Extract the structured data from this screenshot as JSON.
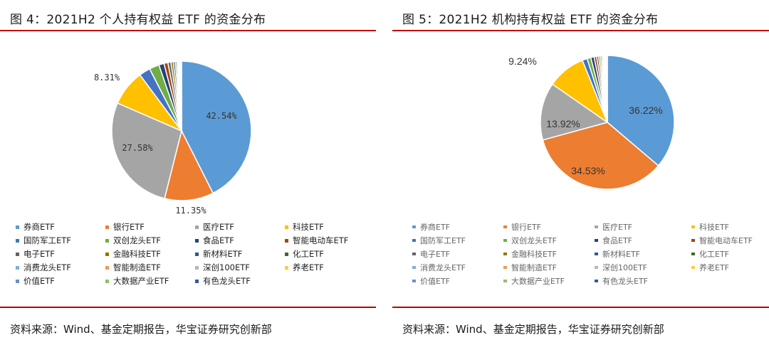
{
  "colors": [
    "#5b9bd5",
    "#ed7d31",
    "#a5a5a5",
    "#ffc000",
    "#4472c4",
    "#70ad47",
    "#264478",
    "#9e480e",
    "#636363",
    "#997300",
    "#255e91",
    "#43682b",
    "#7cafdd",
    "#f1975a",
    "#b7b7b7",
    "#ffcd33",
    "#698ed0",
    "#8cc168",
    "#335aa1"
  ],
  "left": {
    "title": "图 4：2021H2 个人持有权益 ETF 的资金分布",
    "source": "资料来源：Wind、基金定期报告，华宝证券研究创新部"
  },
  "right": {
    "title": "图 5：2021H2 机构持有权益 ETF 的资金分布",
    "source": "资料来源：Wind、基金定期报告，华宝证券研究创新部"
  },
  "chart_data": [
    {
      "type": "pie",
      "title": "图 4：2021H2 个人持有权益 ETF 的资金分布",
      "categories": [
        "券商ETF",
        "银行ETF",
        "医疗ETF",
        "科技ETF",
        "国防军工ETF",
        "双创龙头ETF",
        "食品ETF",
        "智能电动车ETF",
        "电子ETF",
        "金融科技ETF",
        "新材料ETF",
        "化工ETF",
        "消费龙头ETF",
        "智能制造ETF",
        "深创100ETF",
        "养老ETF",
        "价值ETF",
        "大数据产业ETF",
        "有色龙头ETF"
      ],
      "values": [
        42.54,
        11.35,
        27.58,
        8.31,
        2.6,
        2.3,
        1.2,
        0.9,
        0.7,
        0.55,
        0.45,
        0.35,
        0.3,
        0.25,
        0.2,
        0.15,
        0.1,
        0.06,
        0.05
      ],
      "labels": [
        "42.54%",
        "11.35%",
        "27.58%",
        "8.31%",
        "",
        "",
        "",
        "",
        "",
        "",
        "",
        "",
        "",
        "",
        "",
        "",
        "",
        "",
        ""
      ],
      "legend_position": "bottom"
    },
    {
      "type": "pie",
      "title": "图 5：2021H2 机构持有权益 ETF 的资金分布",
      "categories": [
        "券商ETF",
        "银行ETF",
        "医疗ETF",
        "科技ETF",
        "国防军工ETF",
        "双创龙头ETF",
        "食品ETF",
        "智能电动车ETF",
        "电子ETF",
        "金融科技ETF",
        "新材料ETF",
        "化工ETF",
        "消费龙头ETF",
        "智能制造ETF",
        "深创100ETF",
        "养老ETF",
        "价值ETF",
        "大数据产业ETF",
        "有色龙头ETF"
      ],
      "values": [
        36.22,
        34.53,
        13.92,
        9.24,
        1.2,
        0.9,
        0.8,
        0.6,
        0.5,
        0.4,
        0.35,
        0.3,
        0.25,
        0.2,
        0.18,
        0.15,
        0.12,
        0.08,
        0.06
      ],
      "labels": [
        "36.22%",
        "34.53%",
        "13.92%",
        "9.24%",
        "",
        "",
        "",
        "",
        "",
        "",
        "",
        "",
        "",
        "",
        "",
        "",
        "",
        "",
        ""
      ],
      "legend_position": "bottom"
    }
  ]
}
